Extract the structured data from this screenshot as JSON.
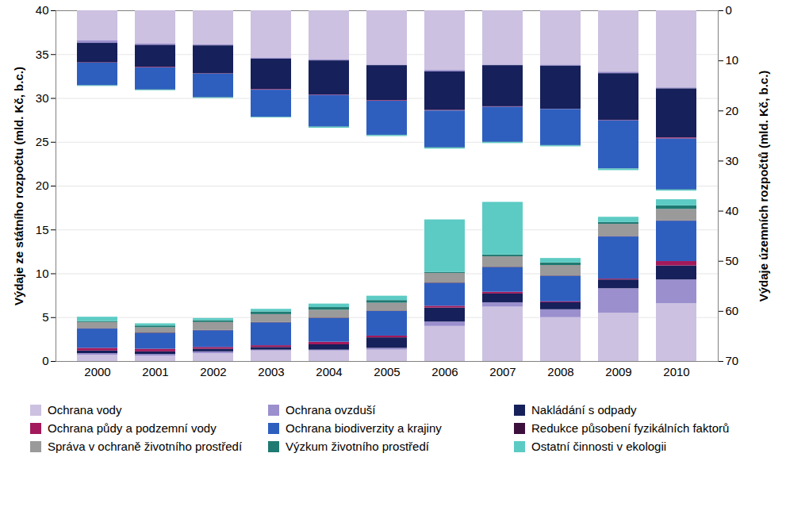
{
  "chart_data": {
    "type": "bar",
    "stacked": true,
    "grid": true,
    "legend": "bottom",
    "y_label": "Výdaje ze státního rozpočtu (mld. Kč, b.c.)",
    "y2_label": "Výdaje územních rozpočtů (mld. Kč, b.c.)",
    "categories": [
      "2000",
      "2001",
      "2002",
      "2003",
      "2004",
      "2005",
      "2006",
      "2007",
      "2008",
      "2009",
      "2010"
    ],
    "ylim": [
      0,
      40
    ],
    "yticks": [
      0,
      5,
      10,
      15,
      20,
      25,
      30,
      35,
      40
    ],
    "y2lim": [
      0,
      70
    ],
    "y2ticks": [
      0,
      10,
      20,
      30,
      40,
      50,
      60,
      70
    ],
    "series": [
      {
        "name": "Ochrana vody",
        "color": "#ccc1e0",
        "values": [
          0.7,
          0.6,
          0.9,
          1.2,
          1.2,
          1.3,
          4.0,
          6.2,
          5.0,
          5.5,
          6.6
        ]
      },
      {
        "name": "Ochrana ovzduší",
        "color": "#9b8fce",
        "values": [
          0.2,
          0.2,
          0.2,
          0.1,
          0.1,
          0.2,
          0.5,
          0.5,
          0.9,
          2.8,
          2.7
        ]
      },
      {
        "name": "Nakládání s odpady",
        "color": "#16205a",
        "values": [
          0.3,
          0.3,
          0.3,
          0.3,
          0.6,
          1.2,
          1.6,
          1.0,
          0.8,
          1.0,
          1.6
        ]
      },
      {
        "name": "Ochrana půdy a podzemní vody",
        "color": "#a3195b",
        "values": [
          0.3,
          0.3,
          0.2,
          0.2,
          0.3,
          0.2,
          0.2,
          0.2,
          0.1,
          0.1,
          0.5
        ]
      },
      {
        "name": "Ochrana biodiverzity a krajiny",
        "color": "#2e5fbf",
        "values": [
          2.2,
          1.8,
          1.9,
          2.6,
          2.7,
          2.8,
          2.6,
          2.8,
          2.9,
          4.8,
          4.6
        ]
      },
      {
        "name": "Redukce působení fyzikálních faktorů",
        "color": "#3d0f3d",
        "values": [
          0.05,
          0.05,
          0.05,
          0.05,
          0.05,
          0.05,
          0.05,
          0.05,
          0.05,
          0.05,
          0.05
        ]
      },
      {
        "name": "Správa v ochraně životního prostředí",
        "color": "#9a9a9a",
        "values": [
          0.7,
          0.6,
          0.9,
          0.9,
          0.9,
          0.9,
          1.1,
          1.2,
          1.2,
          1.4,
          1.3
        ]
      },
      {
        "name": "Výzkum životního prostředí",
        "color": "#1f7a72",
        "values": [
          0.1,
          0.2,
          0.2,
          0.3,
          0.3,
          0.3,
          0.1,
          0.2,
          0.3,
          0.2,
          0.4
        ]
      },
      {
        "name": "Ostatní činnosti v ekologii",
        "color": "#5ccbc4",
        "values": [
          0.5,
          0.25,
          0.25,
          0.3,
          0.4,
          0.5,
          6.0,
          6.0,
          0.5,
          0.6,
          0.7
        ]
      },
      {
        "name": "Ochrana vody",
        "color": "#ccc1e0",
        "axis": "y2",
        "values": [
          6.0,
          6.6,
          6.8,
          9.45,
          9.8,
          10.85,
          11.9,
          10.85,
          10.85,
          12.25,
          15.4
        ]
      },
      {
        "name": "Ochrana ovzduší",
        "color": "#9b8fce",
        "axis": "y2",
        "values": [
          0.5,
          0.3,
          0.2,
          0.2,
          0.2,
          0.1,
          0.3,
          0.1,
          0.2,
          0.3,
          0.2
        ]
      },
      {
        "name": "Nakládání s odpady",
        "color": "#16205a",
        "axis": "y2",
        "values": [
          3.9,
          4.4,
          5.6,
          6.1,
          6.8,
          7.0,
          7.7,
          8.2,
          8.6,
          9.3,
          9.8
        ]
      },
      {
        "name": "Ochrana půdy a podzemní vody",
        "color": "#a3195b",
        "axis": "y2",
        "values": [
          0.05,
          0.1,
          0.05,
          0.1,
          0.1,
          0.1,
          0.1,
          0.1,
          0.05,
          0.1,
          0.2
        ]
      },
      {
        "name": "Ochrana biodiverzity a krajiny",
        "color": "#2e5fbf",
        "axis": "y2",
        "values": [
          4.5,
          4.4,
          4.7,
          5.4,
          6.3,
          6.8,
          7.35,
          7.0,
          7.2,
          9.6,
          10.15
        ]
      },
      {
        "name": "Redukce působení fyzikálních faktorů",
        "color": "#3d0f3d",
        "axis": "y2",
        "values": [
          0,
          0,
          0,
          0,
          0,
          0,
          0,
          0,
          0,
          0,
          0
        ]
      },
      {
        "name": "Správa v ochraně životního prostředí",
        "color": "#9a9a9a",
        "axis": "y2",
        "values": [
          0,
          0,
          0,
          0,
          0,
          0,
          0,
          0,
          0,
          0,
          0
        ]
      },
      {
        "name": "Výzkum životního prostředí",
        "color": "#1f7a72",
        "axis": "y2",
        "values": [
          0.05,
          0.05,
          0.05,
          0.05,
          0.05,
          0.05,
          0.05,
          0.05,
          0.05,
          0.05,
          0.05
        ]
      },
      {
        "name": "Ostatní činnosti v ekologii",
        "color": "#5ccbc4",
        "axis": "y2",
        "values": [
          0.1,
          0.1,
          0.1,
          0.1,
          0.2,
          0.2,
          0.2,
          0.2,
          0.2,
          0.3,
          0.2
        ]
      }
    ]
  }
}
